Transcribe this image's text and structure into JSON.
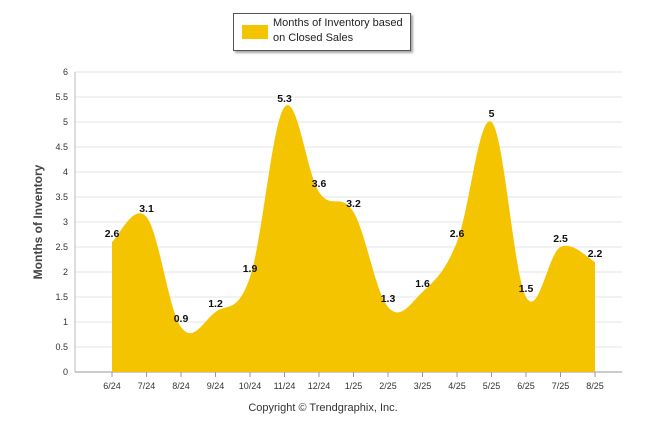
{
  "footer": {
    "copyright": "Copyright © Trendgraphix, Inc."
  },
  "chart_data": {
    "type": "area",
    "categories": [
      "6/24",
      "7/24",
      "8/24",
      "9/24",
      "10/24",
      "11/24",
      "12/24",
      "1/25",
      "2/25",
      "3/25",
      "4/25",
      "5/25",
      "6/25",
      "7/25",
      "8/25"
    ],
    "series": [
      {
        "name": "Months of Inventory based on Closed Sales",
        "values": [
          2.6,
          3.1,
          0.9,
          1.2,
          1.9,
          5.3,
          3.6,
          3.2,
          1.3,
          1.6,
          2.6,
          5.0,
          1.5,
          2.5,
          2.2
        ],
        "value_labels": [
          "2.6",
          "3.1",
          "0.9",
          "1.2",
          "1.9",
          "5.3",
          "3.6",
          "3.2",
          "1.3",
          "1.6",
          "2.6",
          "5",
          "1.5",
          "2.5",
          "2.2"
        ],
        "color": "#f5c400"
      }
    ],
    "legend": {
      "line1": "Months of Inventory based",
      "line2": "on Closed Sales",
      "placement": "top-center"
    },
    "ylabel": "Months of Inventory",
    "xlabel": "",
    "ylim": [
      0,
      6
    ],
    "yticks": [
      "0",
      "0.5",
      "1",
      "1.5",
      "2",
      "2.5",
      "3",
      "3.5",
      "4",
      "4.5",
      "5",
      "5.5",
      "6"
    ],
    "grid": true
  }
}
